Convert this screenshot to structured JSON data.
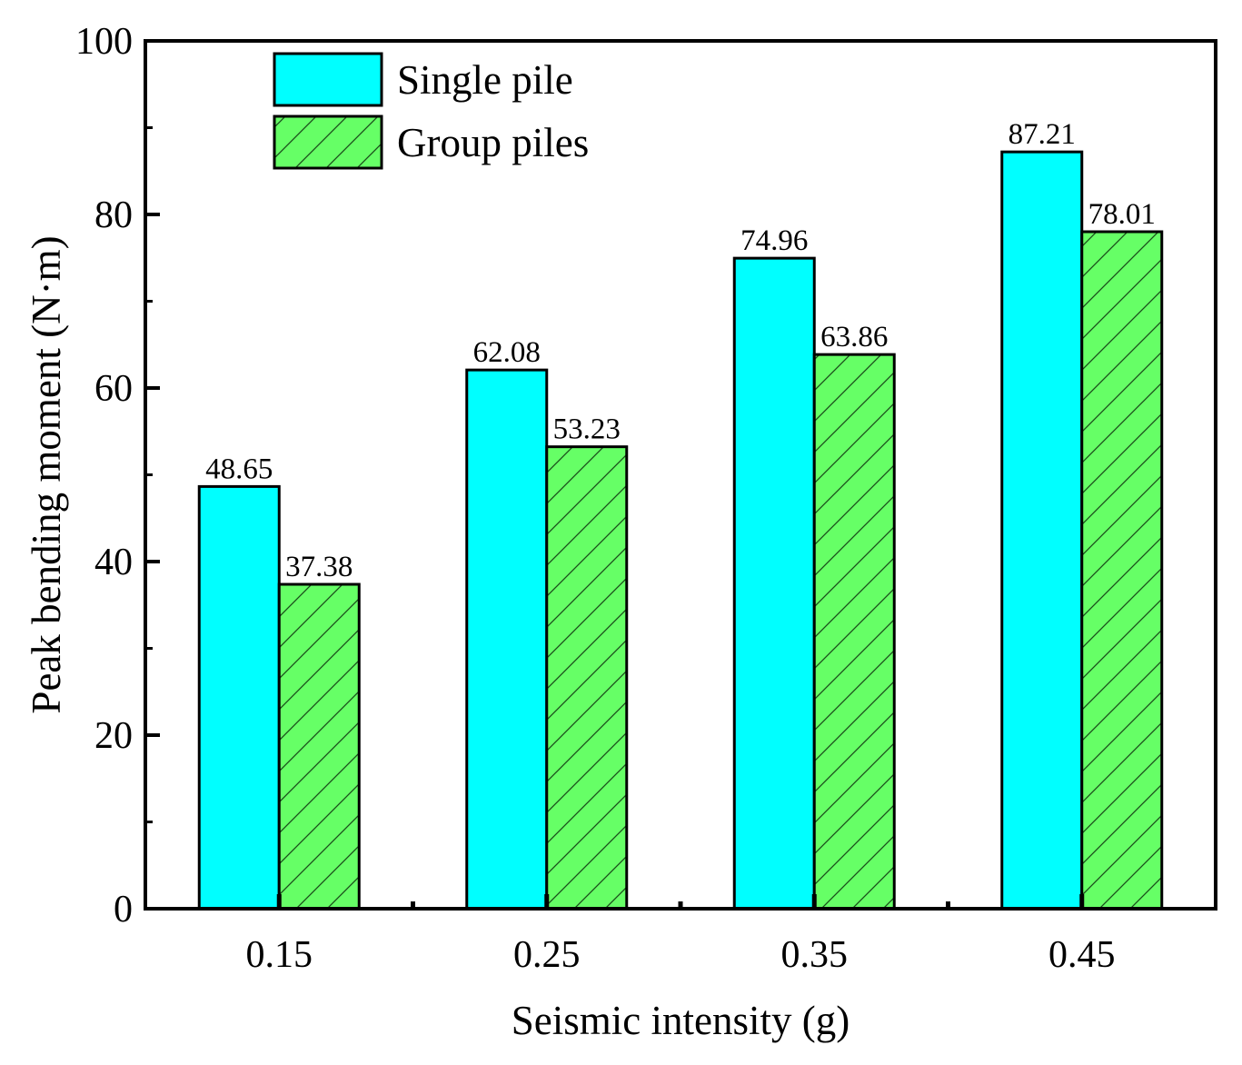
{
  "chart_data": {
    "type": "bar",
    "title": "",
    "xlabel": "Seismic intensity (g)",
    "ylabel": "Peak bending moment (N·m)",
    "categories": [
      "0.15",
      "0.25",
      "0.35",
      "0.45"
    ],
    "series": [
      {
        "name": "Single pile",
        "values": [
          48.65,
          62.08,
          74.96,
          87.21
        ],
        "value_labels": [
          "48.65",
          "62.08",
          "74.96",
          "87.21"
        ],
        "color": "#00ffff",
        "pattern": "solid"
      },
      {
        "name": "Group piles",
        "values": [
          37.38,
          53.23,
          63.86,
          78.01
        ],
        "value_labels": [
          "37.38",
          "53.23",
          "63.86",
          "78.01"
        ],
        "color": "#66ff66",
        "pattern": "diagonal-hatch"
      }
    ],
    "ylim": [
      0,
      100
    ],
    "yticks": [
      0,
      20,
      40,
      60,
      80,
      100
    ],
    "ytick_labels": [
      "0",
      "20",
      "40",
      "60",
      "80",
      "100"
    ],
    "grid": false,
    "legend_position": "top-left"
  }
}
